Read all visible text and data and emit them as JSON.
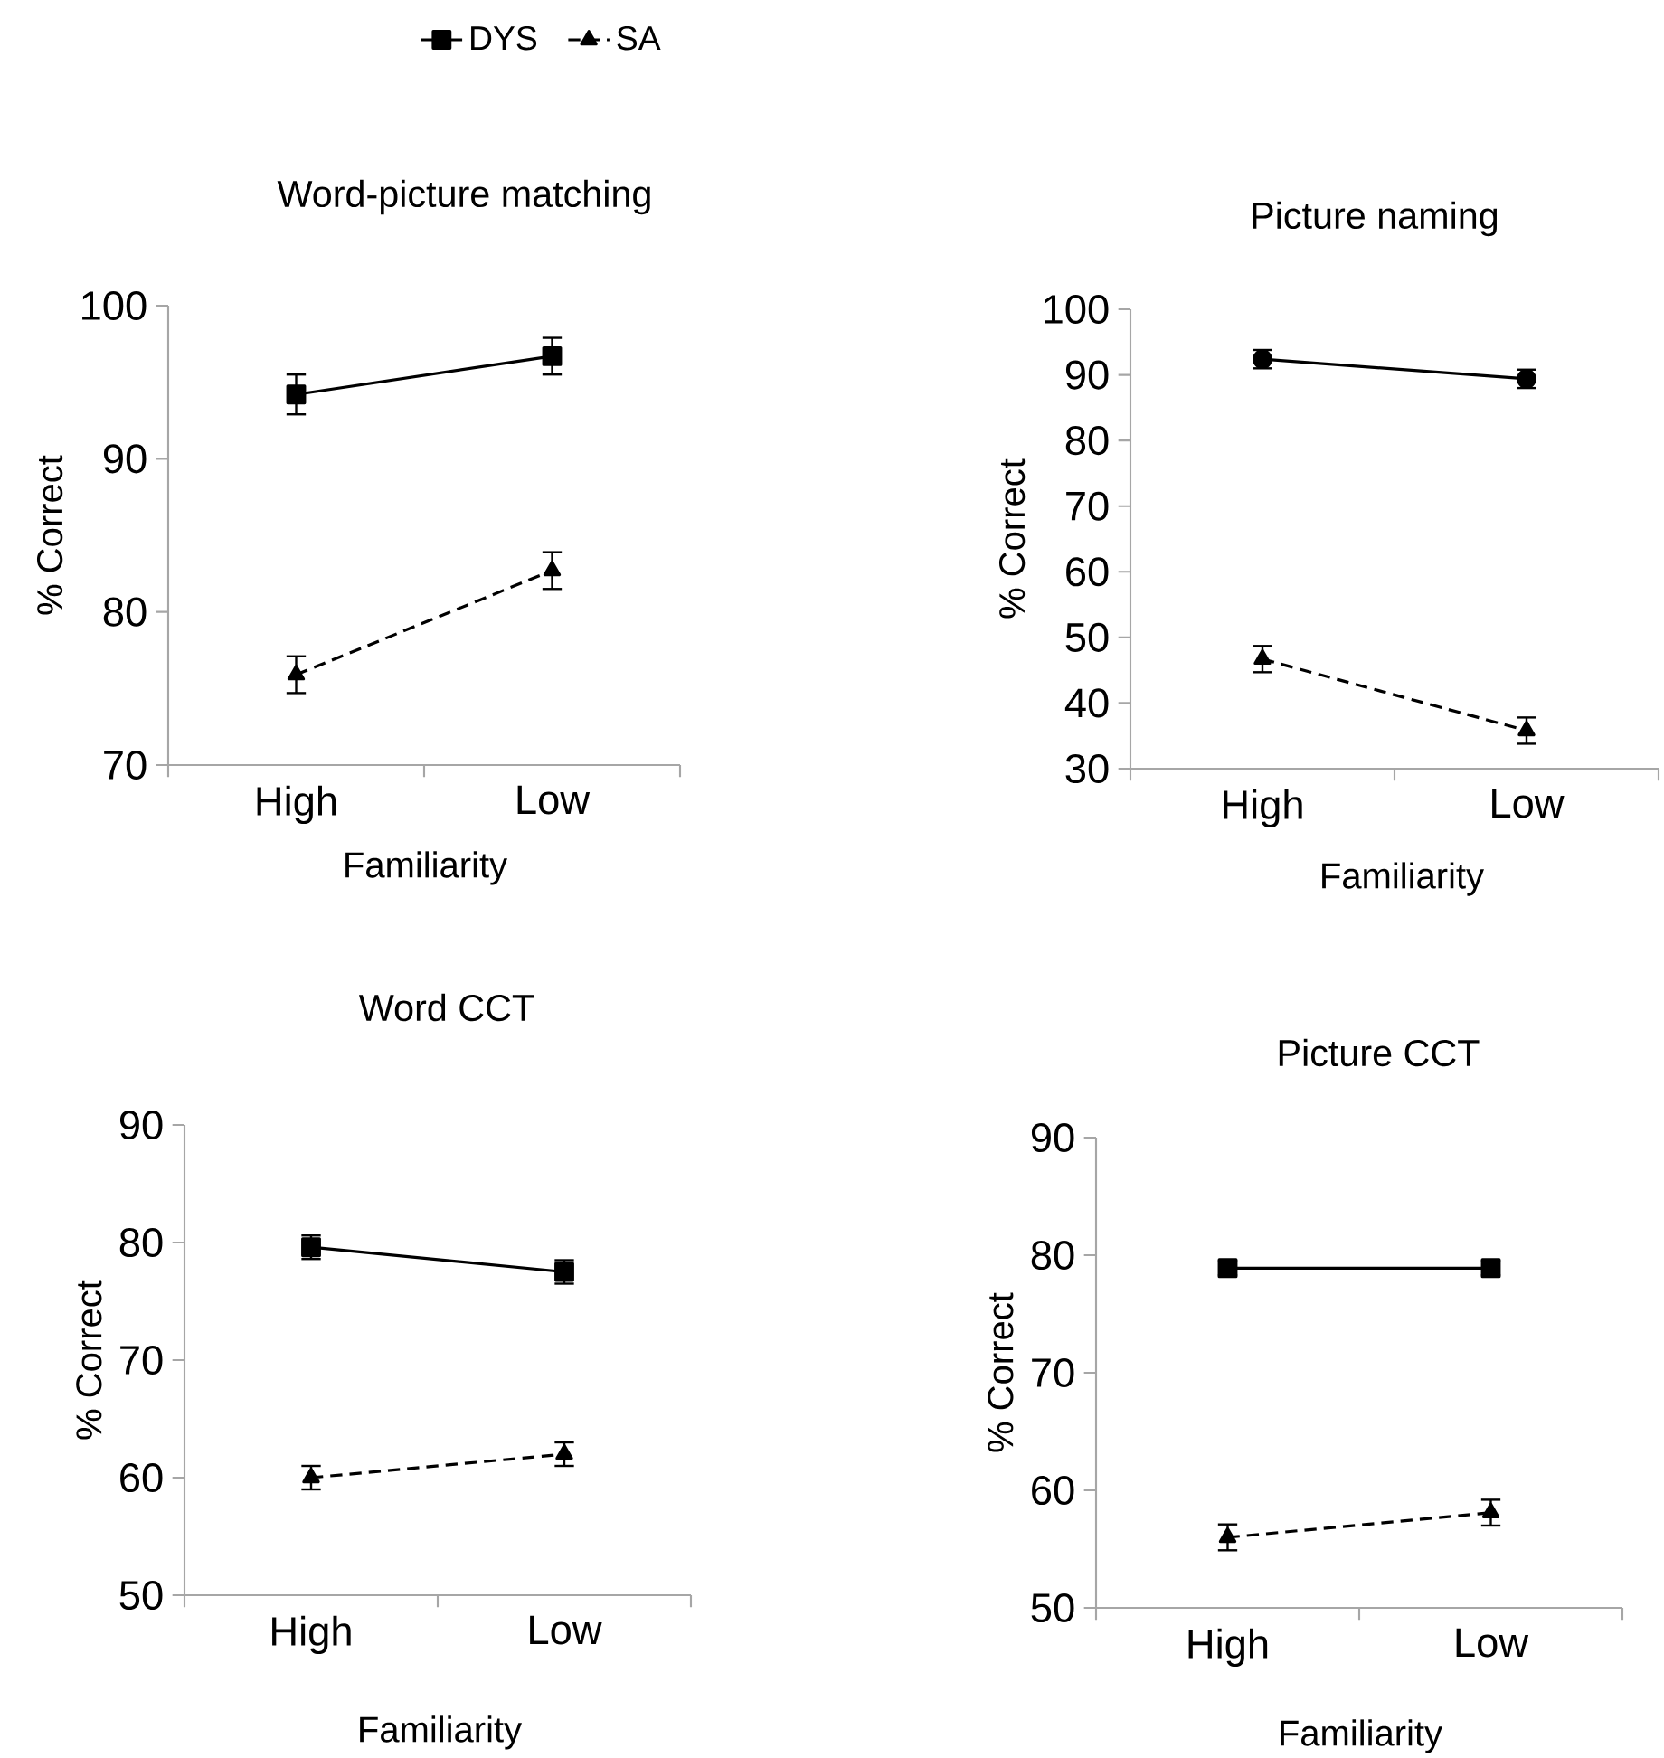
{
  "chart_data": [
    {
      "type": "line",
      "title": "Word-picture matching",
      "xlabel": "Familiarity",
      "ylabel": "% Correct",
      "categories": [
        "High",
        "Low"
      ],
      "ylim": [
        70,
        100
      ],
      "yticks": [
        70,
        80,
        90,
        100
      ],
      "legend": "top",
      "series": [
        {
          "name": "DYS",
          "color": "#000000",
          "values": [
            94.2,
            96.7
          ],
          "errors": [
            1.3,
            1.2
          ],
          "marker": "square",
          "line_style": "solid"
        },
        {
          "name": "SA",
          "color": "#000000",
          "values": [
            75.9,
            82.7
          ],
          "errors": [
            1.2,
            1.2
          ],
          "marker": "triangle",
          "line_style": "dashed"
        }
      ]
    },
    {
      "type": "line",
      "title": "Picture naming",
      "xlabel": "Familiarity",
      "ylabel": "% Correct",
      "categories": [
        "High",
        "Low"
      ],
      "ylim": [
        30,
        100
      ],
      "yticks": [
        30,
        40,
        50,
        60,
        70,
        80,
        90,
        100
      ],
      "series": [
        {
          "color": "#000000",
          "values": [
            92.4,
            89.4
          ],
          "errors": [
            1.4,
            1.4
          ],
          "marker": "circle",
          "line_style": "solid"
        },
        {
          "color": "#000000",
          "values": [
            46.7,
            35.8
          ],
          "errors": [
            2,
            2
          ],
          "marker": "triangle",
          "line_style": "dashed"
        }
      ]
    },
    {
      "type": "line",
      "title": "Word CCT",
      "xlabel": "Familiarity",
      "ylabel": "% Correct",
      "categories": [
        "High",
        "Low"
      ],
      "ylim": [
        50,
        90
      ],
      "yticks": [
        50,
        60,
        70,
        80,
        90
      ],
      "series": [
        {
          "color": "#000000",
          "values": [
            79.6,
            77.5
          ],
          "errors": [
            1,
            1
          ],
          "marker": "square",
          "line_style": "solid"
        },
        {
          "color": "#000000",
          "values": [
            60.0,
            62.0
          ],
          "errors": [
            1,
            1
          ],
          "marker": "triangle",
          "line_style": "dashed"
        }
      ]
    },
    {
      "type": "line",
      "title": "Picture  CCT",
      "xlabel": "Familiarity",
      "ylabel": "% Correct",
      "categories": [
        "High",
        "Low"
      ],
      "ylim": [
        50,
        90
      ],
      "yticks": [
        50,
        60,
        70,
        80,
        90
      ],
      "series": [
        {
          "color": "#000000",
          "values": [
            78.9,
            78.9
          ],
          "errors": [
            0.6,
            0.6
          ],
          "marker": "square",
          "line_style": "solid"
        },
        {
          "color": "#000000",
          "values": [
            56.0,
            58.1
          ],
          "errors": [
            1.1,
            1.1
          ],
          "marker": "triangle",
          "line_style": "dashed"
        }
      ]
    }
  ]
}
